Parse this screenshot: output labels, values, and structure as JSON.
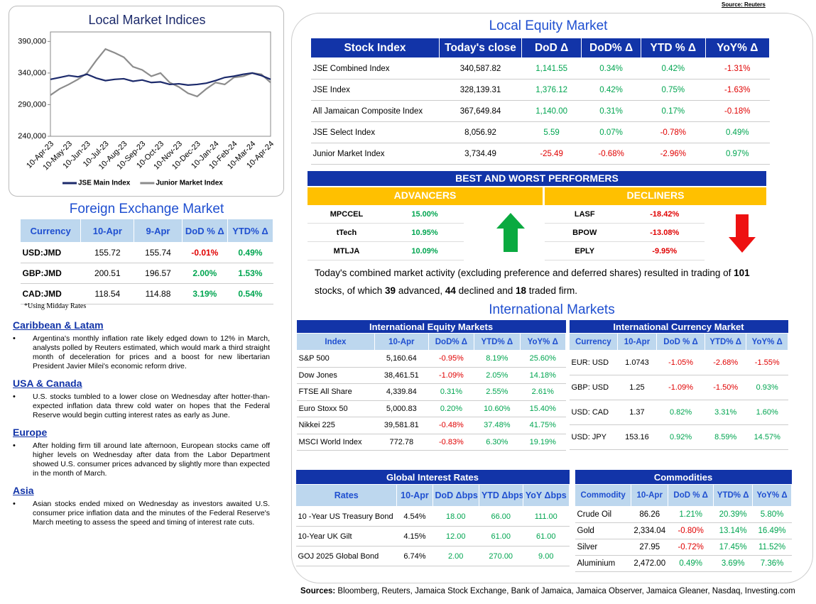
{
  "source_top": "Source: Reuters",
  "chart_data": {
    "type": "line",
    "title": "Local Market Indices",
    "x": [
      "10-Apr-23",
      null,
      "10-May-23",
      null,
      "10-Jun-23",
      null,
      "10-Jul-23",
      null,
      "10-Aug-23",
      null,
      "10-Sep-23",
      null,
      "10-Oct-23",
      null,
      "10-Nov-23",
      null,
      "10-Dec-23",
      null,
      "10-Jan-24",
      null,
      "10-Feb-24",
      null,
      "10-Mar-24",
      null,
      "10-Apr-24"
    ],
    "series": [
      {
        "name": "JSE Main Index",
        "color": "#1c2a6b",
        "values": [
          330000,
          333000,
          336000,
          334000,
          338000,
          332000,
          328000,
          330000,
          331000,
          327000,
          329000,
          325000,
          326000,
          322000,
          323000,
          321000,
          322000,
          324000,
          328000,
          333000,
          335000,
          338000,
          340000,
          336000,
          330000
        ]
      },
      {
        "name": "Junior Market Index",
        "color": "#8c8c8c",
        "values": [
          305000,
          315000,
          322000,
          330000,
          340000,
          360000,
          378000,
          372000,
          365000,
          350000,
          345000,
          335000,
          340000,
          325000,
          318000,
          308000,
          303000,
          315000,
          325000,
          322000,
          333000,
          335000,
          340000,
          338000,
          325000
        ]
      }
    ],
    "ylim": [
      240000,
      405000
    ],
    "yticks": [
      {
        "value": 240000,
        "label": "240,000"
      },
      {
        "value": 290000,
        "label": "290,000"
      },
      {
        "value": 340000,
        "label": "340,000"
      },
      {
        "value": 390000,
        "label": "390,000"
      }
    ]
  },
  "fx": {
    "title": "Foreign Exchange Market",
    "headers": [
      "Currency",
      "10-Apr",
      "9-Apr",
      "DoD % Δ",
      "YTD% Δ"
    ],
    "rows": [
      [
        "USD:JMD",
        "155.72",
        "155.74",
        "-0.01%",
        "0.49%"
      ],
      [
        "GBP:JMD",
        "200.51",
        "196.57",
        "2.00%",
        "1.53%"
      ],
      [
        "CAD:JMD",
        "118.54",
        "114.88",
        "3.19%",
        "0.54%"
      ]
    ],
    "note": "*Using Midday Rates"
  },
  "news": [
    {
      "heading": "Caribbean & Latam",
      "text": "Argentina's monthly inflation rate likely edged down to 12% in March, analysts polled by Reuters estimated, which would mark a third straight month of deceleration for prices and a boost for new libertarian President Javier Milei's economic reform drive."
    },
    {
      "heading": "USA & Canada",
      "text": "U.S. stocks tumbled to a lower close on Wednesday after hotter-than-expected inflation data threw cold water on hopes that the Federal Reserve would begin cutting interest rates as early as June."
    },
    {
      "heading": "Europe",
      "text": "After holding firm till around late afternoon, European stocks came off higher levels on Wednesday after data from the Labor Department showed U.S. consumer prices advanced by slightly more than expected in the month of March."
    },
    {
      "heading": "Asia",
      "text": "Asian stocks ended mixed on Wednesday as investors awaited U.S. consumer price inflation data and the minutes of the Federal Reserve's March meeting to assess the speed and timing of interest rate cuts."
    }
  ],
  "equity": {
    "title": "Local Equity Market",
    "headers": [
      "Stock Index",
      "Today's close",
      "DoD  Δ",
      "DoD% Δ",
      "YTD % Δ",
      "YoY% Δ"
    ],
    "rows": [
      [
        "JSE Combined Index",
        "340,587.82",
        "1,141.55",
        "0.34%",
        "0.42%",
        "-1.31%"
      ],
      [
        "JSE Index",
        "328,139.31",
        "1,376.12",
        "0.42%",
        "0.75%",
        "-1.63%"
      ],
      [
        "All Jamaican Composite Index",
        "367,649.84",
        "1,140.00",
        "0.31%",
        "0.17%",
        "-0.18%"
      ],
      [
        "JSE Select Index",
        "8,056.92",
        "5.59",
        "0.07%",
        "-0.78%",
        "0.49%"
      ],
      [
        "Junior Market Index",
        "3,734.49",
        "-25.49",
        "-0.68%",
        "-2.96%",
        "0.97%"
      ]
    ]
  },
  "performers": {
    "title": "BEST AND WORST PERFORMERS",
    "advancers_label": "ADVANCERS",
    "decliners_label": "DECLINERS",
    "advancers": [
      [
        "MPCCEL",
        "15.00%"
      ],
      [
        "tTech",
        "10.95%"
      ],
      [
        "MTLJA",
        "10.09%"
      ]
    ],
    "decliners": [
      [
        "LASF",
        "-18.42%"
      ],
      [
        "BPOW",
        "-13.08%"
      ],
      [
        "EPLY",
        "-9.95%"
      ]
    ]
  },
  "activity": [
    "Today's combined market activity (excluding preference and deferred shares) resulted in trading of ",
    "101",
    " stocks, of which ",
    "39",
    " advanced, ",
    "44",
    " declined and ",
    "18",
    " traded firm."
  ],
  "intl_title": "International Markets",
  "intl_equity": {
    "title": "International Equity Markets",
    "headers": [
      "Index",
      "10-Apr",
      "DoD% Δ",
      "YTD% Δ",
      "YoY% Δ"
    ],
    "rows": [
      [
        "S&P 500",
        "5,160.64",
        "-0.95%",
        "8.19%",
        "25.60%"
      ],
      [
        "Dow Jones",
        "38,461.51",
        "-1.09%",
        "2.05%",
        "14.18%"
      ],
      [
        "FTSE All Share",
        "4,339.84",
        "0.31%",
        "2.55%",
        "2.61%"
      ],
      [
        "Euro Stoxx 50",
        "5,000.83",
        "0.20%",
        "10.60%",
        "15.40%"
      ],
      [
        "Nikkei 225",
        "39,581.81",
        "-0.48%",
        "37.48%",
        "41.75%"
      ],
      [
        "MSCI World Index",
        "772.78",
        "-0.83%",
        "6.30%",
        "19.19%"
      ]
    ]
  },
  "intl_currency": {
    "title": "International Currency Market",
    "headers": [
      "Currency",
      "10-Apr",
      "DoD % Δ",
      "YTD% Δ",
      "YoY% Δ"
    ],
    "rows": [
      [
        "EUR: USD",
        "1.0743",
        "-1.05%",
        "-2.68%",
        "-1.55%"
      ],
      [
        "GBP: USD",
        "1.25",
        "-1.09%",
        "-1.50%",
        "0.93%"
      ],
      [
        "USD: CAD",
        "1.37",
        "0.82%",
        "3.31%",
        "1.60%"
      ],
      [
        "USD: JPY",
        "153.16",
        "0.92%",
        "8.59%",
        "14.57%"
      ]
    ]
  },
  "rates": {
    "title": "Global Interest Rates",
    "headers": [
      "Rates",
      "10-Apr",
      "DoD Δbps",
      "YTD Δbps",
      "YoY Δbps"
    ],
    "rows": [
      [
        "10 -Year US Treasury Bond",
        "4.54%",
        "18.00",
        "66.00",
        "111.00"
      ],
      [
        "10-Year UK Gilt",
        "4.15%",
        "12.00",
        "61.00",
        "61.00"
      ],
      [
        "GOJ 2025 Global Bond",
        "6.74%",
        "2.00",
        "270.00",
        "9.00"
      ]
    ]
  },
  "commodities": {
    "title": "Commodities",
    "headers": [
      "Commodity",
      "10-Apr",
      "DoD % Δ",
      "YTD% Δ",
      "YoY% Δ"
    ],
    "rows": [
      [
        "Crude Oil",
        "86.26",
        "1.21%",
        "20.39%",
        "5.80%"
      ],
      [
        "Gold",
        "2,334.04",
        "-0.80%",
        "13.14%",
        "16.49%"
      ],
      [
        "Silver",
        "27.95",
        "-0.72%",
        "17.45%",
        "11.52%"
      ],
      [
        "Aluminium",
        "2,472.00",
        "0.49%",
        "3.69%",
        "7.36%"
      ]
    ]
  },
  "sources": {
    "label": "Sources:",
    "text": " Bloomberg, Reuters, Jamaica Stock Exchange, Bank of Jamaica, Jamaica Observer, Jamaica Gleaner, Nasdaq, Investing.com"
  }
}
